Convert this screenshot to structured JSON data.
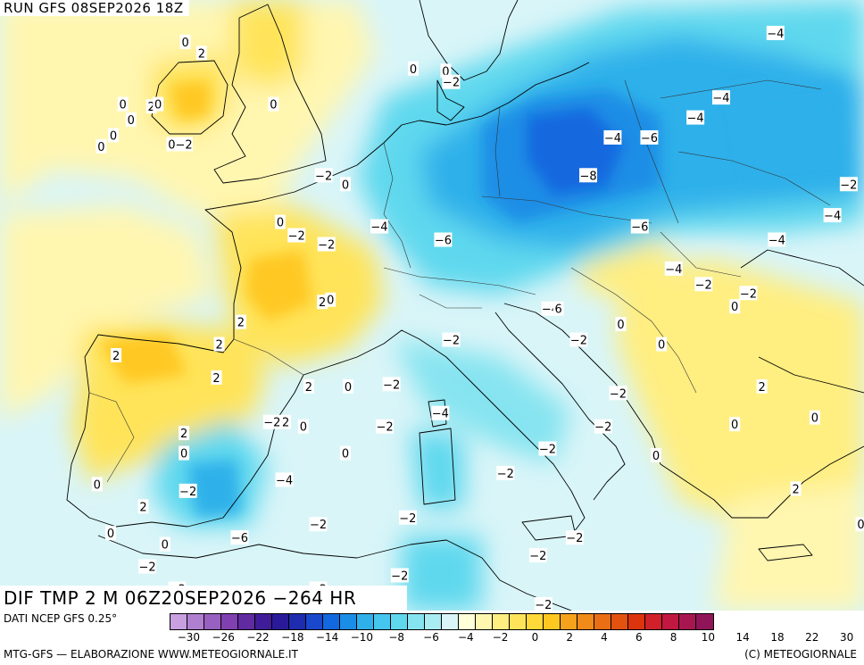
{
  "header": {
    "run_title": "RUN GFS 08SEP2026 18Z"
  },
  "field_title": "DIF TMP 2 M 06Z20SEP2026 −264 HR",
  "source_note": "DATI NCEP GFS 0.25°",
  "credit_left": "MTG-GFS — ELABORAZIONE WWW.METEOGIORNALE.IT",
  "credit_right": "(C) METEOGIORNALE",
  "colors": {
    "sea_zero": "#d9f5f8",
    "cool_light": "#a9ecf2",
    "cool_mid": "#5fd8ee",
    "cool_strong": "#2fb0ea",
    "cold": "#1a8ee6",
    "cold_deep": "#1268df",
    "warm_light": "#fff6b0",
    "warm_mid": "#ffe45a",
    "warm_strong": "#ffc820",
    "hot": "#f6a21c"
  },
  "legend": {
    "colors": [
      "#c8a0e0",
      "#b080d0",
      "#9860c0",
      "#8040b0",
      "#602aa0",
      "#401c98",
      "#2a1a9a",
      "#1e2cb0",
      "#1a48cc",
      "#1268df",
      "#1a8ee6",
      "#2fb0ea",
      "#44c6ee",
      "#5fd8ee",
      "#86e4f0",
      "#a9ecf2",
      "#d9f5f8",
      "#ffffd8",
      "#fff6b0",
      "#ffee80",
      "#ffe45a",
      "#ffd83a",
      "#ffc820",
      "#f6a21c",
      "#f08a18",
      "#ea6e14",
      "#e45210",
      "#dc340c",
      "#d0202a",
      "#c01840",
      "#a81650",
      "#901458"
    ],
    "tick_values": [
      "−30",
      "−26",
      "−22",
      "−18",
      "−14",
      "−10",
      "−8",
      "−6",
      "−4",
      "−2",
      "0",
      "2",
      "4",
      "6",
      "8",
      "10",
      "14",
      "18",
      "22",
      "30"
    ]
  },
  "map": {
    "labels": [
      {
        "text": "0",
        "lon": -4.5,
        "lat": 58.9
      },
      {
        "text": "2",
        "lon": -3.3,
        "lat": 58.4
      },
      {
        "text": "0",
        "lon": -9.1,
        "lat": 56.1
      },
      {
        "text": "2",
        "lon": -7.0,
        "lat": 56.0
      },
      {
        "text": "0",
        "lon": -6.5,
        "lat": 56.1
      },
      {
        "text": "0",
        "lon": -8.5,
        "lat": 55.4
      },
      {
        "text": "0",
        "lon": -9.8,
        "lat": 54.7
      },
      {
        "text": "0",
        "lon": -10.7,
        "lat": 54.2
      },
      {
        "text": "0",
        "lon": -5.5,
        "lat": 54.3
      },
      {
        "text": "−2",
        "lon": -4.6,
        "lat": 54.3
      },
      {
        "text": "0",
        "lon": 2.0,
        "lat": 56.1
      },
      {
        "text": "0",
        "lon": -20.0,
        "lat": 52.9
      },
      {
        "text": "0",
        "lon": 2.5,
        "lat": 50.8
      },
      {
        "text": "0",
        "lon": 7.3,
        "lat": 52.5
      },
      {
        "text": "−2",
        "lon": 5.7,
        "lat": 52.9
      },
      {
        "text": "−2",
        "lon": 3.7,
        "lat": 50.2
      },
      {
        "text": "0",
        "lon": 12.3,
        "lat": 57.7
      },
      {
        "text": "0",
        "lon": 14.7,
        "lat": 57.6
      },
      {
        "text": "−2",
        "lon": 15.1,
        "lat": 57.1
      },
      {
        "text": "−4",
        "lon": 27.0,
        "lat": 54.6
      },
      {
        "text": "−6",
        "lon": 29.7,
        "lat": 54.6
      },
      {
        "text": "−4",
        "lon": 33.1,
        "lat": 55.5
      },
      {
        "text": "−4",
        "lon": 35.0,
        "lat": 56.4
      },
      {
        "text": "−4",
        "lon": 39.0,
        "lat": 59.3
      },
      {
        "text": "−2",
        "lon": 44.4,
        "lat": 52.5
      },
      {
        "text": "−4",
        "lon": 43.2,
        "lat": 51.1
      },
      {
        "text": "−8",
        "lon": 25.2,
        "lat": 52.9
      },
      {
        "text": "−6",
        "lon": 29.0,
        "lat": 50.6
      },
      {
        "text": "−4",
        "lon": 9.8,
        "lat": 50.6
      },
      {
        "text": "−6",
        "lon": 14.5,
        "lat": 50.0
      },
      {
        "text": "−4",
        "lon": 39.1,
        "lat": 50.0
      },
      {
        "text": "−4",
        "lon": 31.5,
        "lat": 48.7
      },
      {
        "text": "−2",
        "lon": 33.7,
        "lat": 48.0
      },
      {
        "text": "−2",
        "lon": 37.0,
        "lat": 47.6
      },
      {
        "text": "0",
        "lon": 36.0,
        "lat": 47.0
      },
      {
        "text": "−4",
        "lon": 22.4,
        "lat": 46.9
      },
      {
        "text": "6",
        "lon": 23.0,
        "lat": 46.9
      },
      {
        "text": "0",
        "lon": 27.6,
        "lat": 46.2
      },
      {
        "text": "0",
        "lon": 30.6,
        "lat": 45.3
      },
      {
        "text": "−2",
        "lon": 15.1,
        "lat": 45.5
      },
      {
        "text": "−2",
        "lon": 24.5,
        "lat": 45.5
      },
      {
        "text": "−2",
        "lon": 5.9,
        "lat": 49.8
      },
      {
        "text": "2",
        "lon": 5.6,
        "lat": 47.2
      },
      {
        "text": "0",
        "lon": 6.2,
        "lat": 47.3
      },
      {
        "text": "2",
        "lon": -0.4,
        "lat": 46.3
      },
      {
        "text": "2",
        "lon": -2.2,
        "lat": 43.8
      },
      {
        "text": "2",
        "lon": 4.6,
        "lat": 43.4
      },
      {
        "text": "0",
        "lon": 7.5,
        "lat": 43.4
      },
      {
        "text": "−2",
        "lon": 10.7,
        "lat": 43.5
      },
      {
        "text": "−4",
        "lon": 14.3,
        "lat": 42.2
      },
      {
        "text": "−2",
        "lon": 27.4,
        "lat": 43.1
      },
      {
        "text": "−2",
        "lon": 26.3,
        "lat": 41.6
      },
      {
        "text": "2",
        "lon": 38.0,
        "lat": 43.4
      },
      {
        "text": "0",
        "lon": 36.0,
        "lat": 41.7
      },
      {
        "text": "0",
        "lon": 41.9,
        "lat": 42.0
      },
      {
        "text": "−2",
        "lon": 1.9,
        "lat": 41.8
      },
      {
        "text": "2",
        "lon": 2.9,
        "lat": 41.8
      },
      {
        "text": "0",
        "lon": 4.2,
        "lat": 41.6
      },
      {
        "text": "−2",
        "lon": 10.2,
        "lat": 41.6
      },
      {
        "text": "0",
        "lon": 7.3,
        "lat": 40.4
      },
      {
        "text": "−2",
        "lon": 22.2,
        "lat": 40.6
      },
      {
        "text": "0",
        "lon": 30.2,
        "lat": 40.3
      },
      {
        "text": "−2",
        "lon": 19.1,
        "lat": 39.5
      },
      {
        "text": "−4",
        "lon": 2.8,
        "lat": 39.2
      },
      {
        "text": "−2",
        "lon": -4.3,
        "lat": 38.7
      },
      {
        "text": "2",
        "lon": -7.6,
        "lat": 38.0
      },
      {
        "text": "2",
        "lon": -4.6,
        "lat": 41.3
      },
      {
        "text": "0",
        "lon": -4.6,
        "lat": 40.4
      },
      {
        "text": "0",
        "lon": -11.0,
        "lat": 39.0
      },
      {
        "text": "2",
        "lon": -2.0,
        "lat": 45.3
      },
      {
        "text": "2",
        "lon": -9.6,
        "lat": 44.8
      },
      {
        "text": "−2",
        "lon": 5.3,
        "lat": 37.2
      },
      {
        "text": "−6",
        "lon": -0.5,
        "lat": 36.6
      },
      {
        "text": "0",
        "lon": -10.0,
        "lat": 36.8
      },
      {
        "text": "0",
        "lon": -6.0,
        "lat": 36.3
      },
      {
        "text": "−2",
        "lon": -7.3,
        "lat": 35.3
      },
      {
        "text": "−2",
        "lon": -5.1,
        "lat": 34.3
      },
      {
        "text": "0",
        "lon": -10.3,
        "lat": 33.9
      },
      {
        "text": "−2",
        "lon": 11.9,
        "lat": 37.5
      },
      {
        "text": "−2",
        "lon": 24.2,
        "lat": 36.6
      },
      {
        "text": "−2",
        "lon": 21.5,
        "lat": 35.8
      },
      {
        "text": "−2",
        "lon": 11.3,
        "lat": 34.9
      },
      {
        "text": "−2",
        "lon": 5.3,
        "lat": 34.3
      },
      {
        "text": "0",
        "lon": 8.4,
        "lat": 34.0
      },
      {
        "text": "−2",
        "lon": 21.9,
        "lat": 33.6
      },
      {
        "text": "−2",
        "lon": 25.5,
        "lat": 31.8
      },
      {
        "text": "2",
        "lon": 40.5,
        "lat": 38.8
      },
      {
        "text": "0",
        "lon": 45.3,
        "lat": 37.2
      }
    ]
  }
}
